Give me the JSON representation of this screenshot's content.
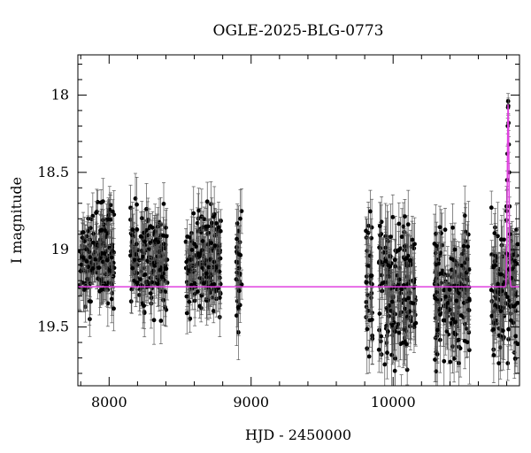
{
  "chart_data": {
    "type": "scatter",
    "title": "OGLE-2025-BLG-0773",
    "xlabel": "HJD - 2450000",
    "ylabel": "I magnitude",
    "xlim": [
      7780,
      10890
    ],
    "ylim": [
      19.88,
      17.74
    ],
    "y_inverted": true,
    "x_ticks": [
      8000,
      9000,
      10000
    ],
    "y_ticks": [
      18,
      18.5,
      19,
      19.5
    ],
    "x_minor_step": 200,
    "y_minor_step": 0.1,
    "grid": false,
    "legend": "none",
    "colors": {
      "points": "#000000",
      "errorbars": "#555555",
      "model": "#e040e0"
    },
    "series": [
      {
        "kind": "observation-seasons",
        "points_per_100_days": 70,
        "seasons": [
          {
            "x_range": [
              7790,
              8040
            ],
            "mag_mean": 19.05,
            "mag_scatter": 0.16,
            "err_mean": 0.11
          },
          {
            "x_range": [
              8150,
              8410
            ],
            "mag_mean": 19.07,
            "mag_scatter": 0.16,
            "err_mean": 0.12
          },
          {
            "x_range": [
              8540,
              8790
            ],
            "mag_mean": 19.07,
            "mag_scatter": 0.17,
            "err_mean": 0.12
          },
          {
            "x_range": [
              8895,
              8935
            ],
            "mag_mean": 19.1,
            "mag_scatter": 0.2,
            "err_mean": 0.13
          },
          {
            "x_range": [
              9805,
              9855
            ],
            "mag_mean": 19.2,
            "mag_scatter": 0.2,
            "err_mean": 0.14
          },
          {
            "x_range": [
              9900,
              10160
            ],
            "mag_mean": 19.28,
            "mag_scatter": 0.22,
            "err_mean": 0.15
          },
          {
            "x_range": [
              10290,
              10540
            ],
            "mag_mean": 19.32,
            "mag_scatter": 0.22,
            "err_mean": 0.15
          },
          {
            "x_range": [
              10690,
              10880
            ],
            "mag_mean": 19.25,
            "mag_scatter": 0.22,
            "err_mean": 0.15
          }
        ],
        "event_points": [
          {
            "x": 10800,
            "y": 18.75,
            "err": 0.06
          },
          {
            "x": 10803,
            "y": 18.55,
            "err": 0.06
          },
          {
            "x": 10805,
            "y": 18.38,
            "err": 0.05
          },
          {
            "x": 10807,
            "y": 18.2,
            "err": 0.05
          },
          {
            "x": 10809,
            "y": 18.08,
            "err": 0.05
          },
          {
            "x": 10810,
            "y": 18.04,
            "err": 0.05
          },
          {
            "x": 10811,
            "y": 18.07,
            "err": 0.05
          },
          {
            "x": 10813,
            "y": 18.18,
            "err": 0.05
          },
          {
            "x": 10815,
            "y": 18.32,
            "err": 0.05
          },
          {
            "x": 10817,
            "y": 18.5,
            "err": 0.06
          },
          {
            "x": 10820,
            "y": 18.72,
            "err": 0.06
          },
          {
            "x": 10823,
            "y": 18.9,
            "err": 0.07
          }
        ]
      },
      {
        "kind": "model",
        "baseline": 19.24,
        "peak_time": 10810,
        "peak_mag": 18.04,
        "timescale": 8
      }
    ]
  }
}
